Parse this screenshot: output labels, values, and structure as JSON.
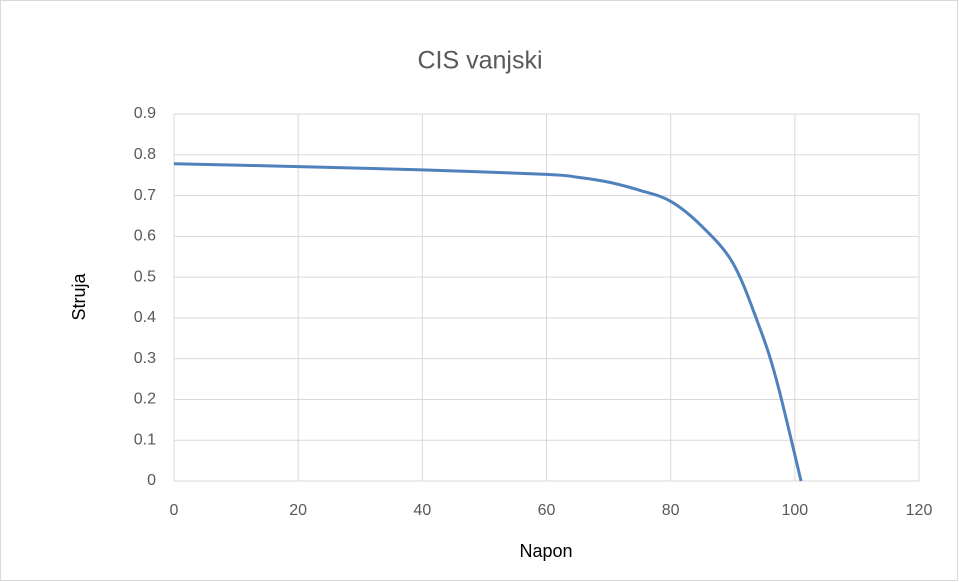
{
  "chart_data": {
    "type": "line",
    "title": "CIS vanjski",
    "x_label": "Napon",
    "y_label": "Struja",
    "x": [
      0,
      20,
      40,
      60,
      65,
      70,
      75,
      80,
      85,
      90,
      94,
      97,
      101
    ],
    "series": [
      {
        "color": "#4f81bd",
        "values": [
          0.778,
          0.771,
          0.763,
          0.752,
          0.745,
          0.733,
          0.713,
          0.686,
          0.625,
          0.535,
          0.39,
          0.25,
          0
        ]
      }
    ],
    "xlim": [
      0,
      120
    ],
    "xticks": [
      0,
      20,
      40,
      60,
      80,
      100,
      120
    ],
    "ylim": [
      0,
      0.9
    ],
    "yticks": [
      0,
      0.1,
      0.2,
      0.3,
      0.4,
      0.5,
      0.6,
      0.7,
      0.8,
      0.9
    ],
    "grid": true,
    "smooth": true
  }
}
